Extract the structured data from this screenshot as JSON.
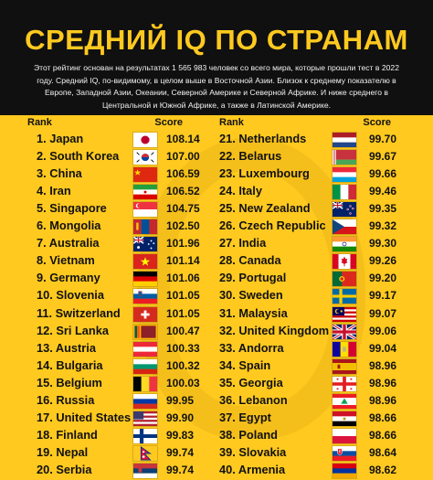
{
  "title": "СРЕДНИЙ IQ ПО СТРАНАМ",
  "subtitle": "Этот рейтинг основан на результатах 1 565 983 человек со всего мира, которые прошли тест в 2022 году. Средний IQ, по-видимому, в целом выше в Восточной Азии. Близок к среднему показателю в Европе, Западной Азии, Океании, Северной Америке и Северной Африке. И ниже среднего в Центральной и Южной Африке, а также в Латинской Америке.",
  "column_headers": {
    "rank": "Rank",
    "score": "Score"
  },
  "chart_data": {
    "type": "table",
    "columns": [
      "Rank",
      "Score"
    ],
    "rows": [
      {
        "label": "1. Japan",
        "score": "108.14",
        "flag": "japan-flag"
      },
      {
        "label": "2. South Korea",
        "score": "107.00",
        "flag": "south-korea-flag"
      },
      {
        "label": "3. China",
        "score": "106.59",
        "flag": "china-flag"
      },
      {
        "label": "4. Iran",
        "score": "106.52",
        "flag": "iran-flag"
      },
      {
        "label": "5. Singapore",
        "score": "104.75",
        "flag": "singapore-flag"
      },
      {
        "label": "6. Mongolia",
        "score": "102.50",
        "flag": "mongolia-flag"
      },
      {
        "label": "7. Australia",
        "score": "101.96",
        "flag": "australia-flag"
      },
      {
        "label": "8. Vietnam",
        "score": "101.14",
        "flag": "vietnam-flag"
      },
      {
        "label": "9. Germany",
        "score": "101.06",
        "flag": "germany-flag"
      },
      {
        "label": "10. Slovenia",
        "score": "101.05",
        "flag": "slovenia-flag"
      },
      {
        "label": "11. Switzerland",
        "score": "101.05",
        "flag": "switzerland-flag"
      },
      {
        "label": "12. Sri Lanka",
        "score": "100.47",
        "flag": "sri-lanka-flag"
      },
      {
        "label": "13. Austria",
        "score": "100.33",
        "flag": "austria-flag"
      },
      {
        "label": "14. Bulgaria",
        "score": "100.32",
        "flag": "bulgaria-flag"
      },
      {
        "label": "15. Belgium",
        "score": "100.03",
        "flag": "belgium-flag"
      },
      {
        "label": "16. Russia",
        "score": "99.95",
        "flag": "russia-flag"
      },
      {
        "label": "17. United States",
        "score": "99.90",
        "flag": "united-states-flag"
      },
      {
        "label": "18. Finland",
        "score": "99.83",
        "flag": "finland-flag"
      },
      {
        "label": "19. Nepal",
        "score": "99.74",
        "flag": "nepal-flag"
      },
      {
        "label": "20. Serbia",
        "score": "99.74",
        "flag": "serbia-flag"
      },
      {
        "label": "21. Netherlands",
        "score": "99.70",
        "flag": "netherlands-flag"
      },
      {
        "label": "22. Belarus",
        "score": "99.67",
        "flag": "belarus-flag"
      },
      {
        "label": "23. Luxembourg",
        "score": "99.66",
        "flag": "luxembourg-flag"
      },
      {
        "label": "24. Italy",
        "score": "99.46",
        "flag": "italy-flag"
      },
      {
        "label": "25. New Zealand",
        "score": "99.35",
        "flag": "new-zealand-flag"
      },
      {
        "label": "26. Czech Republic",
        "score": "99.32",
        "flag": "czech-republic-flag"
      },
      {
        "label": "27. India",
        "score": "99.30",
        "flag": "india-flag"
      },
      {
        "label": "28. Canada",
        "score": "99.26",
        "flag": "canada-flag"
      },
      {
        "label": "29. Portugal",
        "score": "99.20",
        "flag": "portugal-flag"
      },
      {
        "label": "30. Sweden",
        "score": "99.17",
        "flag": "sweden-flag"
      },
      {
        "label": "31. Malaysia",
        "score": "99.07",
        "flag": "malaysia-flag"
      },
      {
        "label": "32. United Kingdom",
        "score": "99.06",
        "flag": "united-kingdom-flag"
      },
      {
        "label": "33. Andorra",
        "score": "99.04",
        "flag": "andorra-flag"
      },
      {
        "label": "34. Spain",
        "score": "98.96",
        "flag": "spain-flag"
      },
      {
        "label": "35. Georgia",
        "score": "98.96",
        "flag": "georgia-flag"
      },
      {
        "label": "36. Lebanon",
        "score": "98.96",
        "flag": "lebanon-flag"
      },
      {
        "label": "37. Egypt",
        "score": "98.66",
        "flag": "egypt-flag"
      },
      {
        "label": "38. Poland",
        "score": "98.66",
        "flag": "poland-flag"
      },
      {
        "label": "39. Slovakia",
        "score": "98.64",
        "flag": "slovakia-flag"
      },
      {
        "label": "40. Armenia",
        "score": "98.62",
        "flag": "armenia-flag"
      }
    ]
  }
}
